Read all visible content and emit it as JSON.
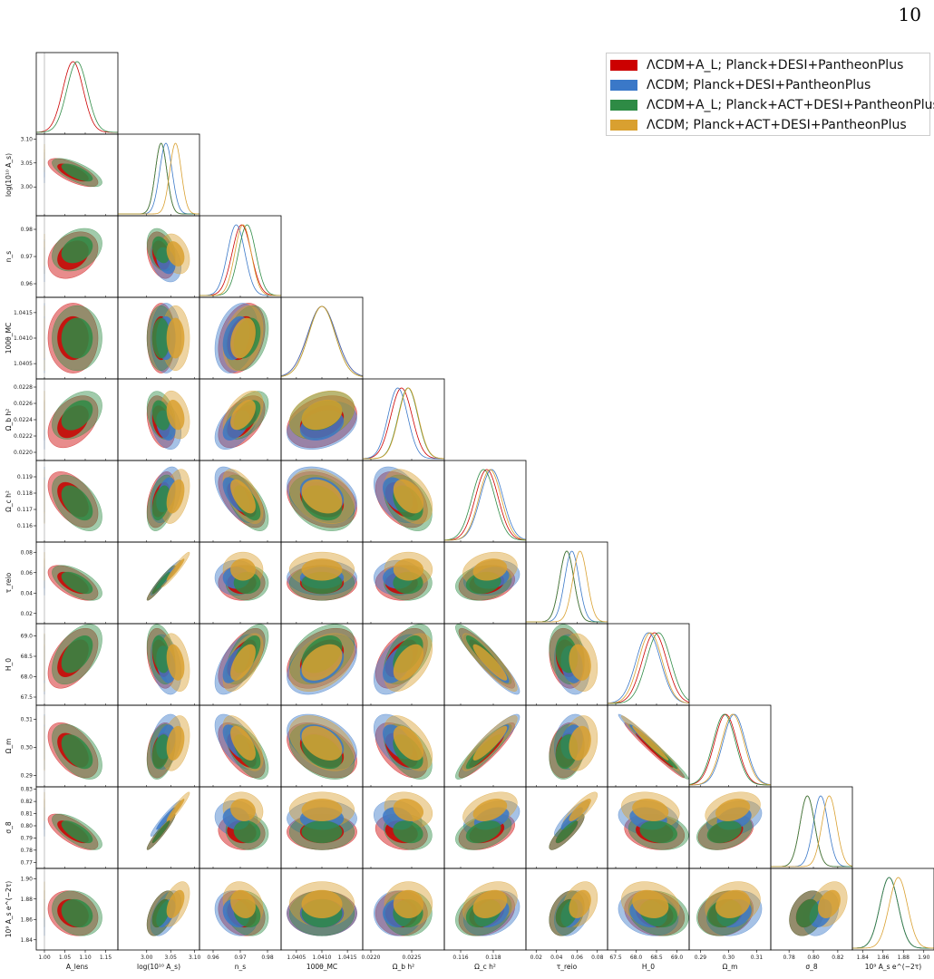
{
  "page": {
    "number": "10"
  },
  "legend": {
    "position": "top-right",
    "items": [
      {
        "label": "ΛCDM+A_L; Planck+DESI+PantheonPlus",
        "color": "#cc0000"
      },
      {
        "label": "ΛCDM; Planck+DESI+PantheonPlus",
        "color": "#3a78c8"
      },
      {
        "label": "ΛCDM+A_L; Planck+ACT+DESI+PantheonPlus",
        "color": "#2e8b45"
      },
      {
        "label": "ΛCDM; Planck+ACT+DESI+PantheonPlus",
        "color": "#d9a030"
      }
    ]
  },
  "chart_data": {
    "type": "triangle-corner",
    "params": [
      {
        "name": "A_lens",
        "label": "A_lens",
        "range": [
          0.98,
          1.18
        ],
        "ticks": [
          1.0,
          1.05,
          1.1,
          1.15
        ],
        "ticklabels": [
          "1.00",
          "1.05",
          "1.10",
          "1.15"
        ]
      },
      {
        "name": "logAs",
        "label": "log(10¹⁰ A_s)",
        "range": [
          2.94,
          3.11
        ],
        "ticks": [
          3.0,
          3.05,
          3.1
        ],
        "ticklabels": [
          "3.00",
          "3.05",
          "3.10"
        ]
      },
      {
        "name": "ns",
        "label": "n_s",
        "range": [
          0.955,
          0.985
        ],
        "ticks": [
          0.96,
          0.97,
          0.98
        ],
        "ticklabels": [
          "0.96",
          "0.97",
          "0.98"
        ]
      },
      {
        "name": "theta",
        "label": "100θ_MC",
        "range": [
          1.0402,
          1.0418
        ],
        "ticks": [
          1.0405,
          1.041,
          1.0415
        ],
        "ticklabels": [
          "1.0405",
          "1.0410",
          "1.0415"
        ]
      },
      {
        "name": "ombh2",
        "label": "Ω_b h²",
        "range": [
          0.0219,
          0.0229
        ],
        "ticks": [
          0.022,
          0.0222,
          0.0224,
          0.0226,
          0.0228
        ],
        "ticklabels": [
          "0.0220",
          "0.0222",
          "0.0224",
          "0.0226",
          "0.0228"
        ],
        "xticks": [
          0.022,
          0.0225
        ],
        "xticklabels": [
          "0.0220",
          "0.0225"
        ]
      },
      {
        "name": "omch2",
        "label": "Ω_c h²",
        "range": [
          0.115,
          0.12
        ],
        "ticks": [
          0.116,
          0.117,
          0.118,
          0.119
        ],
        "ticklabels": [
          "0.116",
          "0.117",
          "0.118",
          "0.119"
        ],
        "xticks": [
          0.116,
          0.118
        ],
        "xticklabels": [
          "0.116",
          "0.118"
        ]
      },
      {
        "name": "tau",
        "label": "τ_reio",
        "range": [
          0.01,
          0.09
        ],
        "ticks": [
          0.02,
          0.04,
          0.06,
          0.08
        ],
        "ticklabels": [
          "0.02",
          "0.04",
          "0.06",
          "0.08"
        ]
      },
      {
        "name": "H0",
        "label": "H_0",
        "range": [
          67.3,
          69.3
        ],
        "ticks": [
          67.5,
          68.0,
          68.5,
          69.0
        ],
        "ticklabels": [
          "67.5",
          "68.0",
          "68.5",
          "69.0"
        ]
      },
      {
        "name": "Om",
        "label": "Ω_m",
        "range": [
          0.286,
          0.315
        ],
        "ticks": [
          0.29,
          0.3,
          0.31
        ],
        "ticklabels": [
          "0.29",
          "0.30",
          "0.31"
        ]
      },
      {
        "name": "s8",
        "label": "σ_8",
        "range": [
          0.765,
          0.832
        ],
        "ticks": [
          0.77,
          0.78,
          0.79,
          0.8,
          0.81,
          0.82,
          0.83
        ],
        "ticklabels": [
          "0.77",
          "0.78",
          "0.79",
          "0.80",
          "0.81",
          "0.82",
          "0.83"
        ],
        "xticks": [
          0.78,
          0.8,
          0.82
        ],
        "xticklabels": [
          "0.78",
          "0.80",
          "0.82"
        ]
      },
      {
        "name": "Ase",
        "label": "10⁹ A_s e^(−2τ)",
        "range": [
          1.83,
          1.91
        ],
        "ticks": [
          1.84,
          1.86,
          1.88,
          1.9
        ],
        "ticklabels": [
          "1.84",
          "1.86",
          "1.88",
          "1.90"
        ]
      }
    ],
    "reference_line": {
      "param": "A_lens",
      "value": 1.0
    },
    "series": [
      {
        "name": "ΛCDM+A_L; Planck+DESI+PantheonPlus",
        "color": "#cc0000",
        "mean": [
          1.07,
          3.03,
          0.9705,
          1.041,
          0.022375,
          0.1176,
          0.05,
          68.45,
          0.299,
          0.795,
          1.866
        ],
        "sigma": [
          0.025,
          0.012,
          0.0035,
          0.00028,
          0.00013,
          0.0007,
          0.007,
          0.3,
          0.004,
          0.006,
          0.009
        ]
      },
      {
        "name": "ΛCDM; Planck+DESI+PantheonPlus",
        "color": "#3a78c8",
        "mean": [
          1.0,
          3.04,
          0.9685,
          1.041,
          0.02233,
          0.1179,
          0.055,
          68.3,
          0.302,
          0.806,
          1.866
        ],
        "sigma": [
          0.0,
          0.013,
          0.0032,
          0.00028,
          0.00012,
          0.0007,
          0.007,
          0.3,
          0.004,
          0.006,
          0.009
        ]
      },
      {
        "name": "ΛCDM+A_L; Planck+ACT+DESI+PantheonPlus",
        "color": "#2e8b45",
        "mean": [
          1.08,
          3.03,
          0.9725,
          1.041,
          0.022455,
          0.1174,
          0.05,
          68.55,
          0.2985,
          0.795,
          1.866
        ],
        "sigma": [
          0.025,
          0.012,
          0.0032,
          0.00026,
          0.00012,
          0.0007,
          0.007,
          0.3,
          0.004,
          0.006,
          0.009
        ]
      },
      {
        "name": "ΛCDM; Planck+ACT+DESI+PantheonPlus",
        "color": "#d9a030",
        "mean": [
          1.0,
          3.06,
          0.971,
          1.041,
          0.02246,
          0.1178,
          0.063,
          68.35,
          0.3015,
          0.813,
          1.875
        ],
        "sigma": [
          0.0,
          0.012,
          0.003,
          0.00026,
          0.00012,
          0.00068,
          0.007,
          0.29,
          0.004,
          0.006,
          0.009
        ]
      }
    ],
    "correlations": {
      "1-0": -0.7,
      "2-0": 0.3,
      "3-0": 0.0,
      "4-0": 0.4,
      "5-0": -0.5,
      "6-0": -0.6,
      "7-0": 0.5,
      "8-0": -0.5,
      "9-0": -0.7,
      "10-0": -0.2,
      "2-1": -0.3,
      "3-1": 0.0,
      "4-1": -0.3,
      "5-1": 0.4,
      "6-1": 0.95,
      "7-1": -0.3,
      "8-1": 0.3,
      "9-1": 0.95,
      "10-1": 0.5,
      "3-2": 0.3,
      "4-2": 0.5,
      "5-2": -0.6,
      "6-2": 0.0,
      "7-2": 0.6,
      "8-2": -0.6,
      "9-2": -0.1,
      "10-2": -0.2,
      "4-3": 0.3,
      "5-3": -0.3,
      "6-3": 0.0,
      "7-3": 0.4,
      "8-3": -0.4,
      "9-3": 0.0,
      "10-3": 0.0,
      "5-4": -0.4,
      "6-4": 0.0,
      "7-4": 0.5,
      "8-4": -0.5,
      "9-4": -0.2,
      "10-4": 0.0,
      "6-5": 0.2,
      "7-5": -0.9,
      "8-5": 0.9,
      "9-5": 0.4,
      "10-5": 0.3,
      "7-6": -0.2,
      "8-6": 0.2,
      "9-6": 0.85,
      "10-6": 0.3,
      "8-7": -0.98,
      "9-7": -0.2,
      "10-7": -0.2,
      "9-8": 0.3,
      "10-8": 0.2,
      "10-9": 0.3
    }
  }
}
